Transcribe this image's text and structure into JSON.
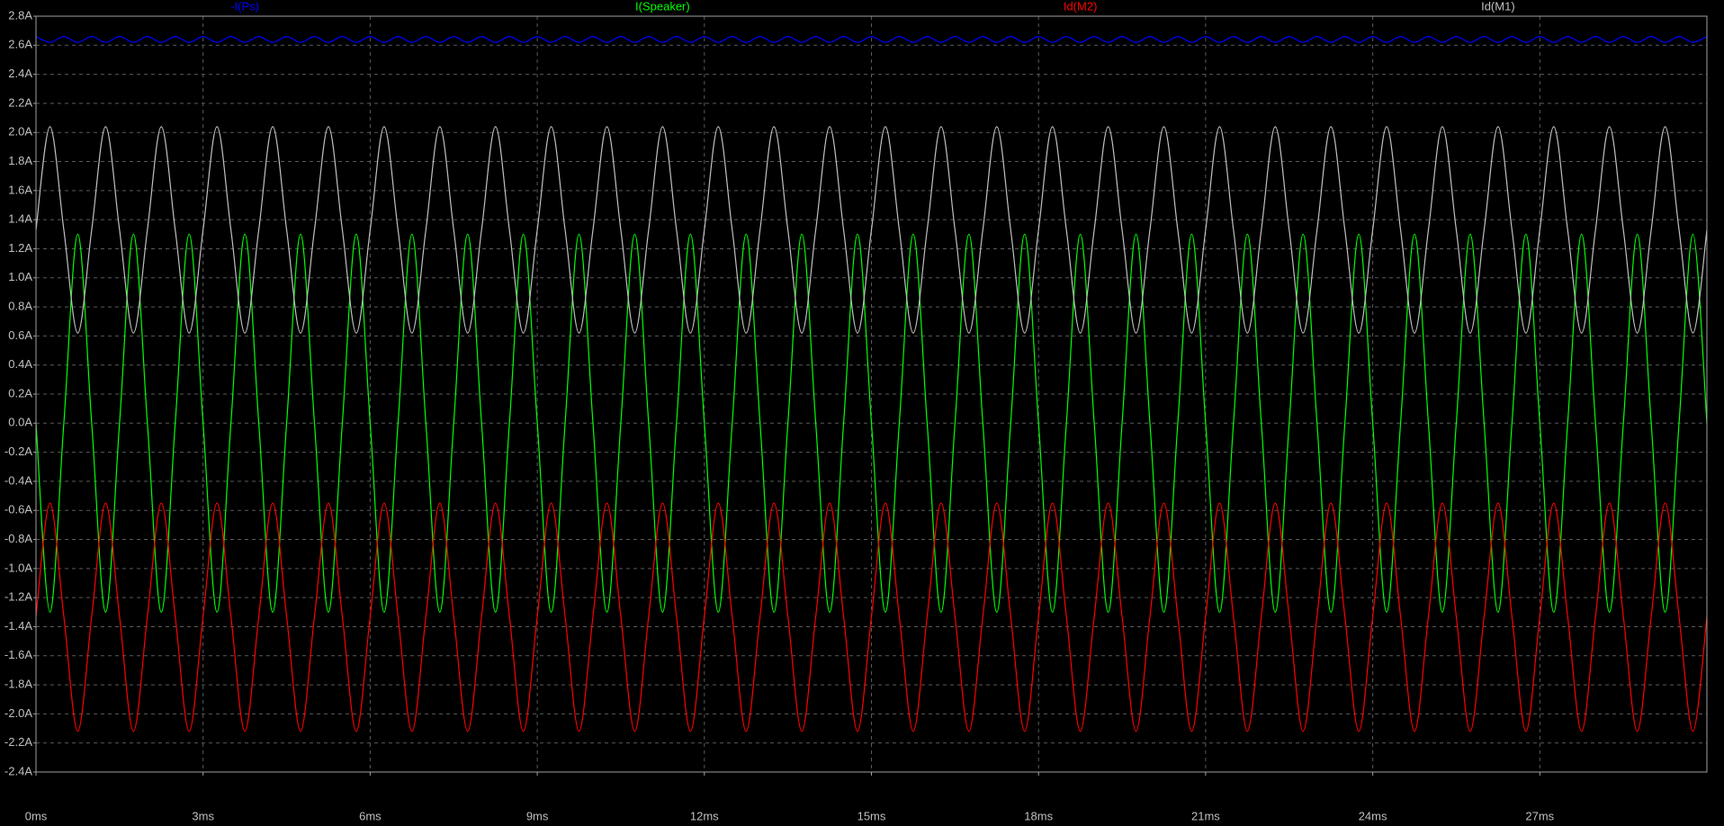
{
  "chart_data": {
    "type": "line",
    "x": [
      0,
      0.25,
      0.5,
      0.75,
      1,
      1.25,
      1.5,
      1.75,
      2,
      2.25,
      2.5,
      2.75,
      3,
      3.25,
      3.5,
      3.75,
      4,
      4.25,
      4.5,
      4.75,
      5,
      5.25,
      5.5,
      5.75,
      6,
      6.25,
      6.5,
      6.75,
      7,
      7.25,
      7.5,
      7.75,
      8,
      8.25,
      8.5,
      8.75,
      9,
      9.25,
      9.5,
      9.75,
      10,
      10.25,
      10.5,
      10.75,
      11,
      11.25,
      11.5,
      11.75,
      12,
      12.25,
      12.5,
      12.75,
      13,
      13.25,
      13.5,
      13.75,
      14,
      14.25,
      14.5,
      14.75,
      15,
      15.25,
      15.5,
      15.75,
      16,
      16.25,
      16.5,
      16.75,
      17,
      17.25,
      17.5,
      17.75,
      18,
      18.25,
      18.5,
      18.75,
      19,
      19.25,
      19.5,
      19.75,
      20,
      20.25,
      20.5,
      20.75,
      21,
      21.25,
      21.5,
      21.75,
      22,
      22.25,
      22.5,
      22.75,
      23,
      23.25,
      23.5,
      23.75,
      24,
      24.25,
      24.5,
      24.75,
      25,
      25.25,
      25.5,
      25.75,
      26,
      26.25,
      26.5,
      26.75,
      27,
      27.25,
      27.5,
      27.75,
      28,
      28.25,
      28.5,
      28.75,
      29,
      29.25,
      29.5,
      29.75,
      30
    ],
    "series": [
      {
        "name": "-I(Ps)",
        "color": "#0000ff",
        "values": [
          2.66,
          2.62,
          2.66,
          2.62,
          2.66,
          2.62,
          2.66,
          2.62,
          2.66,
          2.62,
          2.66,
          2.62,
          2.66,
          2.62,
          2.66,
          2.62,
          2.66,
          2.62,
          2.66,
          2.62,
          2.66,
          2.62,
          2.66,
          2.62,
          2.66,
          2.62,
          2.66,
          2.62,
          2.66,
          2.62,
          2.66,
          2.62,
          2.66,
          2.62,
          2.66,
          2.62,
          2.66,
          2.62,
          2.66,
          2.62,
          2.66,
          2.62,
          2.66,
          2.62,
          2.66,
          2.62,
          2.66,
          2.62,
          2.66,
          2.62,
          2.66,
          2.62,
          2.66,
          2.62,
          2.66,
          2.62,
          2.66,
          2.62,
          2.66,
          2.62,
          2.66,
          2.62,
          2.66,
          2.62,
          2.66,
          2.62,
          2.66,
          2.62,
          2.66,
          2.62,
          2.66,
          2.62,
          2.66,
          2.62,
          2.66,
          2.62,
          2.66,
          2.62,
          2.66,
          2.62,
          2.66,
          2.62,
          2.66,
          2.62,
          2.66,
          2.62,
          2.66,
          2.62,
          2.66,
          2.62,
          2.66,
          2.62,
          2.66,
          2.62,
          2.66,
          2.62,
          2.66,
          2.62,
          2.66,
          2.62,
          2.66,
          2.62,
          2.66,
          2.62,
          2.66,
          2.62,
          2.66,
          2.62,
          2.66,
          2.62,
          2.66,
          2.62,
          2.66,
          2.62,
          2.66,
          2.62,
          2.66,
          2.62,
          2.66,
          2.62,
          2.66
        ]
      },
      {
        "name": "I(Speaker)",
        "color": "#00ff00",
        "values": [
          0,
          -1.3,
          0,
          1.3,
          0,
          -1.3,
          0,
          1.3,
          0,
          -1.3,
          0,
          1.3,
          0,
          -1.3,
          0,
          1.3,
          0,
          -1.3,
          0,
          1.3,
          0,
          -1.3,
          0,
          1.3,
          0,
          -1.3,
          0,
          1.3,
          0,
          -1.3,
          0,
          1.3,
          0,
          -1.3,
          0,
          1.3,
          0,
          -1.3,
          0,
          1.3,
          0,
          -1.3,
          0,
          1.3,
          0,
          -1.3,
          0,
          1.3,
          0,
          -1.3,
          0,
          1.3,
          0,
          -1.3,
          0,
          1.3,
          0,
          -1.3,
          0,
          1.3,
          0,
          -1.3,
          0,
          1.3,
          0,
          -1.3,
          0,
          1.3,
          0,
          -1.3,
          0,
          1.3,
          0,
          -1.3,
          0,
          1.3,
          0,
          -1.3,
          0,
          1.3,
          0,
          -1.3,
          0,
          1.3,
          0,
          -1.3,
          0,
          1.3,
          0,
          -1.3,
          0,
          1.3,
          0,
          -1.3,
          0,
          1.3,
          0,
          -1.3,
          0,
          1.3,
          0,
          -1.3,
          0,
          1.3,
          0,
          -1.3,
          0,
          1.3,
          0,
          -1.3,
          0,
          1.3,
          0,
          -1.3,
          0,
          1.3,
          0,
          -1.3,
          0,
          1.3,
          0
        ]
      },
      {
        "name": "Id(M2)",
        "color": "#ff0000",
        "values": [
          -1.33,
          -0.55,
          -1.33,
          -2.12,
          -1.33,
          -0.55,
          -1.33,
          -2.12,
          -1.33,
          -0.55,
          -1.33,
          -2.12,
          -1.33,
          -0.55,
          -1.33,
          -2.12,
          -1.33,
          -0.55,
          -1.33,
          -2.12,
          -1.33,
          -0.55,
          -1.33,
          -2.12,
          -1.33,
          -0.55,
          -1.33,
          -2.12,
          -1.33,
          -0.55,
          -1.33,
          -2.12,
          -1.33,
          -0.55,
          -1.33,
          -2.12,
          -1.33,
          -0.55,
          -1.33,
          -2.12,
          -1.33,
          -0.55,
          -1.33,
          -2.12,
          -1.33,
          -0.55,
          -1.33,
          -2.12,
          -1.33,
          -0.55,
          -1.33,
          -2.12,
          -1.33,
          -0.55,
          -1.33,
          -2.12,
          -1.33,
          -0.55,
          -1.33,
          -2.12,
          -1.33,
          -0.55,
          -1.33,
          -2.12,
          -1.33,
          -0.55,
          -1.33,
          -2.12,
          -1.33,
          -0.55,
          -1.33,
          -2.12,
          -1.33,
          -0.55,
          -1.33,
          -2.12,
          -1.33,
          -0.55,
          -1.33,
          -2.12,
          -1.33,
          -0.55,
          -1.33,
          -2.12,
          -1.33,
          -0.55,
          -1.33,
          -2.12,
          -1.33,
          -0.55,
          -1.33,
          -2.12,
          -1.33,
          -0.55,
          -1.33,
          -2.12,
          -1.33,
          -0.55,
          -1.33,
          -2.12,
          -1.33,
          -0.55,
          -1.33,
          -2.12,
          -1.33,
          -0.55,
          -1.33,
          -2.12,
          -1.33,
          -0.55,
          -1.33,
          -2.12,
          -1.33,
          -0.55,
          -1.33,
          -2.12,
          -1.33,
          -0.55,
          -1.33,
          -2.12,
          -1.33
        ]
      },
      {
        "name": "Id(M1)",
        "color": "#c0c0c0",
        "values": [
          1.33,
          2.04,
          1.33,
          0.62,
          1.33,
          2.04,
          1.33,
          0.62,
          1.33,
          2.04,
          1.33,
          0.62,
          1.33,
          2.04,
          1.33,
          0.62,
          1.33,
          2.04,
          1.33,
          0.62,
          1.33,
          2.04,
          1.33,
          0.62,
          1.33,
          2.04,
          1.33,
          0.62,
          1.33,
          2.04,
          1.33,
          0.62,
          1.33,
          2.04,
          1.33,
          0.62,
          1.33,
          2.04,
          1.33,
          0.62,
          1.33,
          2.04,
          1.33,
          0.62,
          1.33,
          2.04,
          1.33,
          0.62,
          1.33,
          2.04,
          1.33,
          0.62,
          1.33,
          2.04,
          1.33,
          0.62,
          1.33,
          2.04,
          1.33,
          0.62,
          1.33,
          2.04,
          1.33,
          0.62,
          1.33,
          2.04,
          1.33,
          0.62,
          1.33,
          2.04,
          1.33,
          0.62,
          1.33,
          2.04,
          1.33,
          0.62,
          1.33,
          2.04,
          1.33,
          0.62,
          1.33,
          2.04,
          1.33,
          0.62,
          1.33,
          2.04,
          1.33,
          0.62,
          1.33,
          2.04,
          1.33,
          0.62,
          1.33,
          2.04,
          1.33,
          0.62,
          1.33,
          2.04,
          1.33,
          0.62,
          1.33,
          2.04,
          1.33,
          0.62,
          1.33,
          2.04,
          1.33,
          0.62,
          1.33,
          2.04,
          1.33,
          0.62,
          1.33,
          2.04,
          1.33,
          0.62,
          1.33,
          2.04,
          1.33,
          0.62,
          1.33
        ]
      }
    ],
    "xlim": [
      0,
      30
    ],
    "xticks": [
      {
        "value": 0,
        "label": "0ms"
      },
      {
        "value": 3,
        "label": "3ms"
      },
      {
        "value": 6,
        "label": "6ms"
      },
      {
        "value": 9,
        "label": "9ms"
      },
      {
        "value": 12,
        "label": "12ms"
      },
      {
        "value": 15,
        "label": "15ms"
      },
      {
        "value": 18,
        "label": "18ms"
      },
      {
        "value": 21,
        "label": "21ms"
      },
      {
        "value": 24,
        "label": "24ms"
      },
      {
        "value": 27,
        "label": "27ms"
      }
    ],
    "ylim": [
      -2.4,
      2.8
    ],
    "yticks": [
      {
        "value": 2.8,
        "label": "2.8A"
      },
      {
        "value": 2.6,
        "label": "2.6A"
      },
      {
        "value": 2.4,
        "label": "2.4A"
      },
      {
        "value": 2.2,
        "label": "2.2A"
      },
      {
        "value": 2.0,
        "label": "2.0A"
      },
      {
        "value": 1.8,
        "label": "1.8A"
      },
      {
        "value": 1.6,
        "label": "1.6A"
      },
      {
        "value": 1.4,
        "label": "1.4A"
      },
      {
        "value": 1.2,
        "label": "1.2A"
      },
      {
        "value": 1.0,
        "label": "1.0A"
      },
      {
        "value": 0.8,
        "label": "0.8A"
      },
      {
        "value": 0.6,
        "label": "0.6A"
      },
      {
        "value": 0.4,
        "label": "0.4A"
      },
      {
        "value": 0.2,
        "label": "0.2A"
      },
      {
        "value": 0,
        "label": "0.0A"
      },
      {
        "value": -0.2,
        "label": "-0.2A"
      },
      {
        "value": -0.4,
        "label": "-0.4A"
      },
      {
        "value": -0.6,
        "label": "-0.6A"
      },
      {
        "value": -0.8,
        "label": "-0.8A"
      },
      {
        "value": -1.0,
        "label": "-1.0A"
      },
      {
        "value": -1.2,
        "label": "-1.2A"
      },
      {
        "value": -1.4,
        "label": "-1.4A"
      },
      {
        "value": -1.6,
        "label": "-1.6A"
      },
      {
        "value": -1.8,
        "label": "-1.8A"
      },
      {
        "value": -2.0,
        "label": "-2.0A"
      },
      {
        "value": -2.2,
        "label": "-2.2A"
      },
      {
        "value": -2.4,
        "label": "-2.4A"
      }
    ],
    "grid": true
  }
}
